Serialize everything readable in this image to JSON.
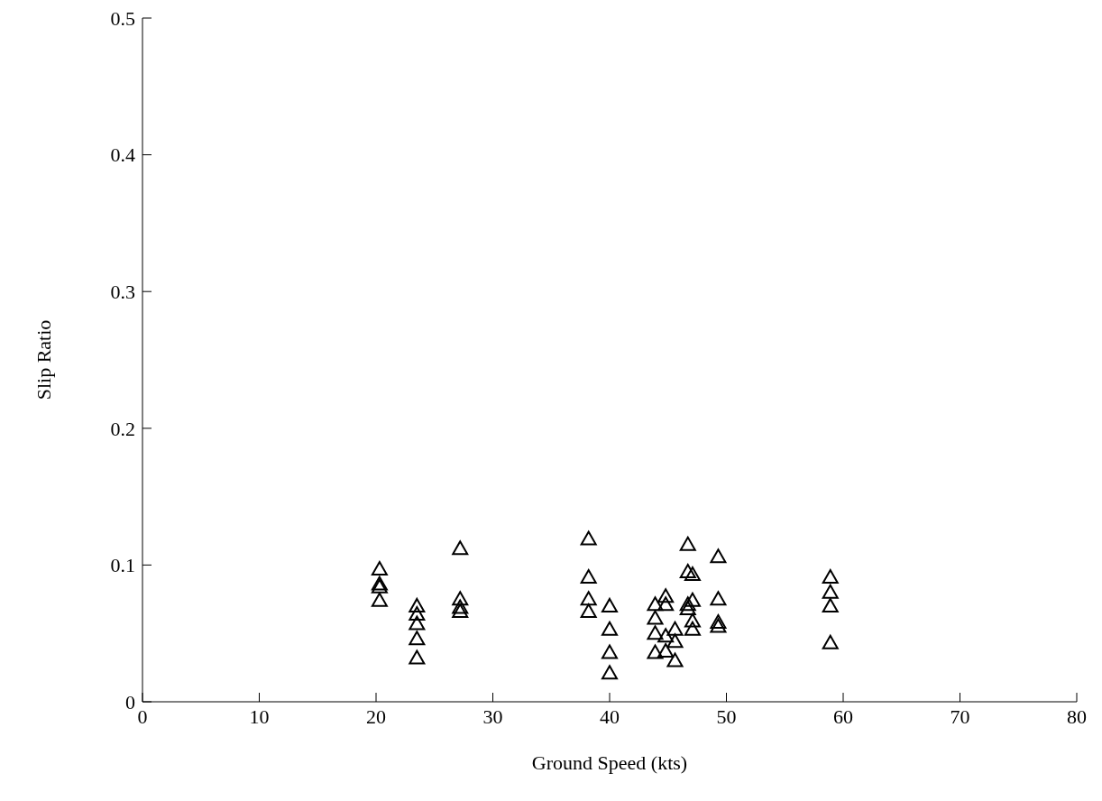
{
  "chart_data": {
    "type": "scatter",
    "xlabel": "Ground Speed (kts)",
    "ylabel": "Slip Ratio",
    "marker": "triangle",
    "grid": false,
    "series": [
      {
        "color": "#000000",
        "x": [
          20.3,
          20.3,
          20.3,
          20.3,
          23.5,
          23.5,
          23.5,
          23.5,
          23.5,
          27.2,
          27.2,
          27.2,
          27.2,
          38.2,
          38.2,
          38.2,
          38.2,
          40.0,
          40.0,
          40.0,
          40.0,
          43.9,
          43.9,
          43.9,
          43.9,
          44.8,
          44.8,
          44.8,
          44.8,
          45.6,
          45.6,
          45.6,
          46.7,
          46.7,
          46.7,
          46.7,
          47.1,
          47.1,
          47.1,
          47.1,
          49.3,
          49.3,
          49.3,
          49.3,
          58.9,
          58.9,
          58.9,
          58.9
        ],
        "values": [
          0.097,
          0.086,
          0.084,
          0.074,
          0.07,
          0.064,
          0.057,
          0.046,
          0.032,
          0.112,
          0.075,
          0.069,
          0.066,
          0.119,
          0.091,
          0.075,
          0.066,
          0.07,
          0.053,
          0.036,
          0.021,
          0.071,
          0.061,
          0.05,
          0.036,
          0.077,
          0.071,
          0.048,
          0.037,
          0.053,
          0.044,
          0.03,
          0.115,
          0.095,
          0.071,
          0.068,
          0.093,
          0.074,
          0.059,
          0.053,
          0.106,
          0.075,
          0.058,
          0.055,
          0.091,
          0.08,
          0.07,
          0.043
        ]
      }
    ],
    "xlim": [
      0,
      80
    ],
    "xticks": [
      0,
      10,
      20,
      30,
      40,
      50,
      60,
      70,
      80
    ],
    "ylim": [
      0,
      0.5
    ],
    "yticks": [
      0,
      0.1,
      0.2,
      0.3,
      0.4,
      0.5
    ]
  }
}
